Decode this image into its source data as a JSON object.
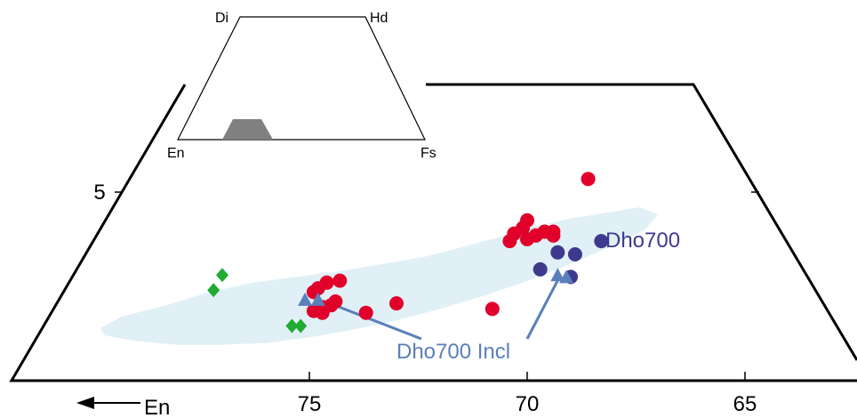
{
  "chart_data": {
    "type": "scatter",
    "title": "",
    "xlabel": "",
    "ylabel": "",
    "xlim": [
      80.3,
      61.4
    ],
    "x_axis": {
      "ticks": [
        75,
        70,
        65
      ],
      "tick_labels": [
        "75",
        "70",
        "65"
      ],
      "direction_label": "En"
    },
    "y_axis": {
      "tick_value": 5,
      "tick_label": "5"
    },
    "field": {
      "color": "#e1f0f7",
      "outline": [
        [
          79.8,
          1.4
        ],
        [
          79.3,
          1.7
        ],
        [
          78.3,
          2.0
        ],
        [
          77.3,
          2.35
        ],
        [
          76.3,
          2.6
        ],
        [
          75.3,
          2.75
        ],
        [
          74.3,
          2.9
        ],
        [
          73.3,
          3.1
        ],
        [
          72.3,
          3.3
        ],
        [
          71.3,
          3.6
        ],
        [
          70.5,
          3.85
        ],
        [
          69.8,
          4.1
        ],
        [
          69.0,
          4.3
        ],
        [
          68.2,
          4.45
        ],
        [
          67.4,
          4.6
        ],
        [
          67.0,
          4.4
        ],
        [
          67.3,
          4.0
        ],
        [
          67.9,
          3.65
        ],
        [
          68.6,
          3.3
        ],
        [
          69.3,
          2.95
        ],
        [
          70.1,
          2.6
        ],
        [
          71.0,
          2.25
        ],
        [
          72.0,
          1.9
        ],
        [
          73.0,
          1.6
        ],
        [
          74.0,
          1.35
        ],
        [
          75.0,
          1.15
        ],
        [
          76.0,
          1.0
        ],
        [
          77.0,
          0.95
        ],
        [
          78.0,
          0.95
        ],
        [
          79.0,
          1.05
        ],
        [
          79.7,
          1.2
        ]
      ]
    },
    "series": [
      {
        "name": "",
        "marker": "circle",
        "color": "#e0002a",
        "points": [
          [
            68.6,
            5.35
          ],
          [
            70.0,
            4.25
          ],
          [
            70.1,
            4.05
          ],
          [
            70.3,
            3.9
          ],
          [
            69.6,
            3.95
          ],
          [
            69.4,
            3.95
          ],
          [
            69.8,
            3.85
          ],
          [
            69.4,
            3.85
          ],
          [
            70.0,
            3.75
          ],
          [
            70.4,
            3.7
          ],
          [
            74.3,
            2.65
          ],
          [
            74.6,
            2.6
          ],
          [
            74.8,
            2.45
          ],
          [
            74.9,
            2.35
          ],
          [
            74.4,
            2.1
          ],
          [
            74.5,
            2.0
          ],
          [
            74.7,
            1.95
          ],
          [
            74.9,
            1.85
          ],
          [
            74.7,
            1.8
          ],
          [
            73.7,
            1.8
          ],
          [
            73.0,
            2.05
          ],
          [
            70.8,
            1.9
          ]
        ]
      },
      {
        "name": "Dho700",
        "marker": "circle",
        "color": "#3d3a8e",
        "points": [
          [
            68.3,
            3.7
          ],
          [
            69.3,
            3.4
          ],
          [
            68.9,
            3.35
          ],
          [
            69.7,
            2.95
          ],
          [
            69.0,
            2.75
          ]
        ]
      },
      {
        "name": "Dho700 Incl",
        "marker": "triangle",
        "color": "#5b7fbb",
        "points": [
          [
            69.3,
            2.8
          ],
          [
            69.1,
            2.75
          ],
          [
            75.1,
            2.15
          ],
          [
            74.8,
            2.15
          ]
        ]
      },
      {
        "name": "",
        "marker": "diamond",
        "color": "#22aa33",
        "points": [
          [
            77.0,
            2.8
          ],
          [
            77.2,
            2.4
          ],
          [
            75.4,
            1.45
          ],
          [
            75.2,
            1.45
          ]
        ]
      }
    ],
    "annotations": [
      {
        "text": "Dho700",
        "color": "#3d3a8e"
      },
      {
        "text": "Dho700 Incl",
        "color": "#5b7fbb"
      }
    ],
    "inset": {
      "corner_labels": [
        "Di",
        "Hd",
        "En",
        "Fs"
      ],
      "highlight_color": "#808080"
    }
  }
}
